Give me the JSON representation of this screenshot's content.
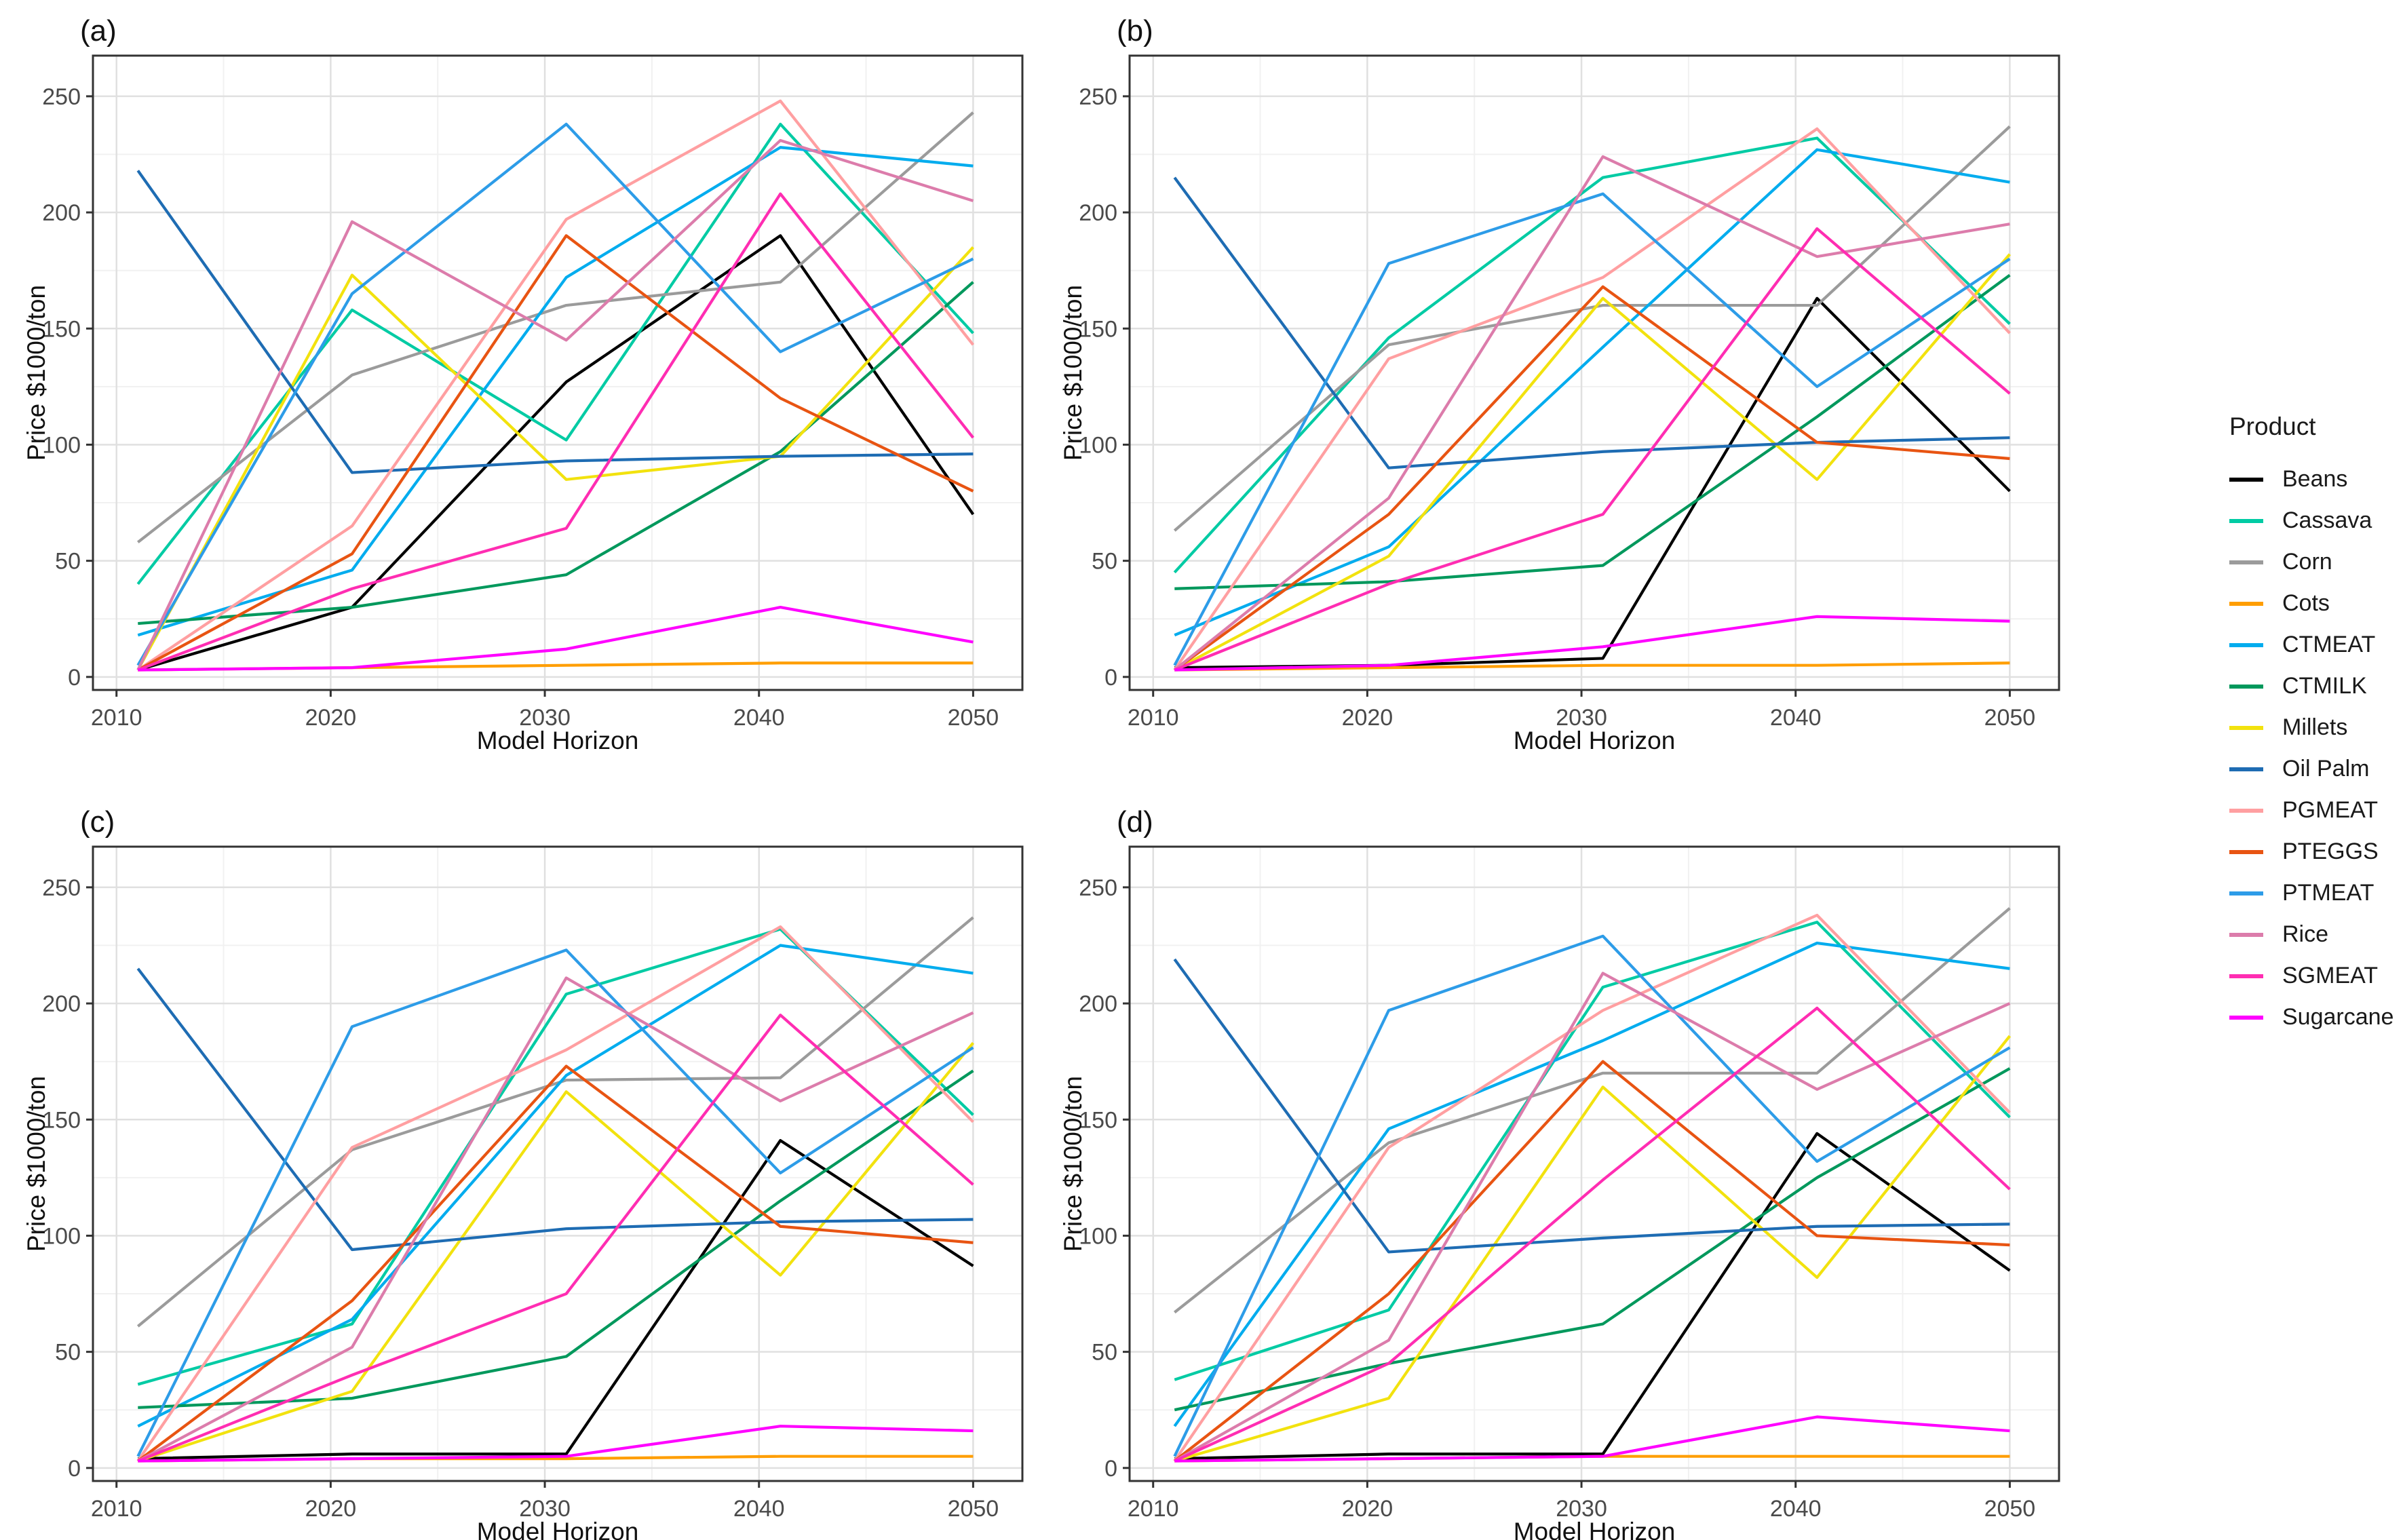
{
  "legend": {
    "title": "Product",
    "items": [
      {
        "label": "Beans",
        "color": "#000000"
      },
      {
        "label": "Cassava",
        "color": "#00CBA4"
      },
      {
        "label": "Corn",
        "color": "#9B9B9B"
      },
      {
        "label": "Cots",
        "color": "#FF9E00"
      },
      {
        "label": "CTMEAT",
        "color": "#00ACEE"
      },
      {
        "label": "CTMILK",
        "color": "#00985C"
      },
      {
        "label": "Millets",
        "color": "#F2E20E"
      },
      {
        "label": "Oil Palm",
        "color": "#1E6CB3"
      },
      {
        "label": "PGMEAT",
        "color": "#FF9FA1"
      },
      {
        "label": "PTEGGS",
        "color": "#E85412"
      },
      {
        "label": "PTMEAT",
        "color": "#2D9CE8"
      },
      {
        "label": "Rice",
        "color": "#DC7CAB"
      },
      {
        "label": "SGMEAT",
        "color": "#FF2DB2"
      },
      {
        "label": "Sugarcane",
        "color": "#FF00FF"
      }
    ]
  },
  "axes": {
    "xlabel": "Model Horizon",
    "ylabel": "Price $1000/ton",
    "xticks": [
      2010,
      2020,
      2030,
      2040,
      2050
    ],
    "yticks": [
      0,
      50,
      100,
      150,
      200,
      250
    ],
    "x_minor": [
      2015,
      2025,
      2035,
      2045
    ],
    "y_minor": [
      25,
      75,
      125,
      175,
      225
    ],
    "xlim": [
      2008.9,
      2052.3
    ],
    "ylim": [
      -5.6,
      267.5
    ],
    "grid": "on",
    "major_grid_color": "#E0E0E0",
    "minor_grid_color": "#F1F1F1",
    "border_color": "#333333",
    "tick_label_color": "#4a4a4a",
    "title_color": "#111111"
  },
  "chart_data": [
    {
      "type": "line",
      "title": "(a)",
      "xlabel": "Model Horizon",
      "ylabel": "Price $1000/ton",
      "x": [
        2011,
        2021,
        2031,
        2041,
        2050
      ],
      "series": [
        {
          "name": "Beans",
          "color": "#000000",
          "values": [
            3,
            30,
            127,
            190,
            70
          ]
        },
        {
          "name": "Cassava",
          "color": "#00CBA4",
          "values": [
            40,
            158,
            102,
            238,
            148
          ]
        },
        {
          "name": "Corn",
          "color": "#9B9B9B",
          "values": [
            58,
            130,
            160,
            170,
            243
          ]
        },
        {
          "name": "Cots",
          "color": "#FF9E00",
          "values": [
            3,
            4,
            5,
            6,
            6
          ]
        },
        {
          "name": "CTMEAT",
          "color": "#00ACEE",
          "values": [
            18,
            46,
            172,
            228,
            220
          ]
        },
        {
          "name": "CTMILK",
          "color": "#00985C",
          "values": [
            23,
            30,
            44,
            97,
            170
          ]
        },
        {
          "name": "Millets",
          "color": "#F2E20E",
          "values": [
            3,
            173,
            85,
            95,
            185
          ]
        },
        {
          "name": "Oil Palm",
          "color": "#1E6CB3",
          "values": [
            218,
            88,
            93,
            95,
            96
          ]
        },
        {
          "name": "PGMEAT",
          "color": "#FF9FA1",
          "values": [
            3,
            65,
            197,
            248,
            143
          ]
        },
        {
          "name": "PTEGGS",
          "color": "#E85412",
          "values": [
            3,
            53,
            190,
            120,
            80
          ]
        },
        {
          "name": "PTMEAT",
          "color": "#2D9CE8",
          "values": [
            5,
            165,
            238,
            140,
            180
          ]
        },
        {
          "name": "Rice",
          "color": "#DC7CAB",
          "values": [
            3,
            196,
            145,
            231,
            205
          ]
        },
        {
          "name": "SGMEAT",
          "color": "#FF2DB2",
          "values": [
            3,
            38,
            64,
            208,
            103
          ]
        },
        {
          "name": "Sugarcane",
          "color": "#FF00FF",
          "values": [
            3,
            4,
            12,
            30,
            15
          ]
        }
      ]
    },
    {
      "type": "line",
      "title": "(b)",
      "xlabel": "Model Horizon",
      "ylabel": "Price $1000/ton",
      "x": [
        2011,
        2021,
        2031,
        2041,
        2050
      ],
      "series": [
        {
          "name": "Beans",
          "color": "#000000",
          "values": [
            4,
            5,
            8,
            163,
            80
          ]
        },
        {
          "name": "Cassava",
          "color": "#00CBA4",
          "values": [
            45,
            146,
            215,
            232,
            152
          ]
        },
        {
          "name": "Corn",
          "color": "#9B9B9B",
          "values": [
            63,
            143,
            160,
            160,
            237
          ]
        },
        {
          "name": "Cots",
          "color": "#FF9E00",
          "values": [
            3,
            4,
            5,
            5,
            6
          ]
        },
        {
          "name": "CTMEAT",
          "color": "#00ACEE",
          "values": [
            18,
            56,
            142,
            227,
            213
          ]
        },
        {
          "name": "CTMILK",
          "color": "#00985C",
          "values": [
            38,
            41,
            48,
            112,
            173
          ]
        },
        {
          "name": "Millets",
          "color": "#F2E20E",
          "values": [
            3,
            52,
            163,
            85,
            182
          ]
        },
        {
          "name": "Oil Palm",
          "color": "#1E6CB3",
          "values": [
            215,
            90,
            97,
            101,
            103
          ]
        },
        {
          "name": "PGMEAT",
          "color": "#FF9FA1",
          "values": [
            3,
            137,
            172,
            236,
            148
          ]
        },
        {
          "name": "PTEGGS",
          "color": "#E85412",
          "values": [
            3,
            70,
            168,
            101,
            94
          ]
        },
        {
          "name": "PTMEAT",
          "color": "#2D9CE8",
          "values": [
            5,
            178,
            208,
            125,
            180
          ]
        },
        {
          "name": "Rice",
          "color": "#DC7CAB",
          "values": [
            3,
            77,
            224,
            181,
            195
          ]
        },
        {
          "name": "SGMEAT",
          "color": "#FF2DB2",
          "values": [
            3,
            40,
            70,
            193,
            122
          ]
        },
        {
          "name": "Sugarcane",
          "color": "#FF00FF",
          "values": [
            3,
            5,
            13,
            26,
            24
          ]
        }
      ]
    },
    {
      "type": "line",
      "title": "(c)",
      "xlabel": "Model Horizon",
      "ylabel": "Price $1000/ton",
      "x": [
        2011,
        2021,
        2031,
        2041,
        2050
      ],
      "series": [
        {
          "name": "Beans",
          "color": "#000000",
          "values": [
            4,
            6,
            6,
            141,
            87
          ]
        },
        {
          "name": "Cassava",
          "color": "#00CBA4",
          "values": [
            36,
            62,
            204,
            232,
            152
          ]
        },
        {
          "name": "Corn",
          "color": "#9B9B9B",
          "values": [
            61,
            137,
            167,
            168,
            237
          ]
        },
        {
          "name": "Cots",
          "color": "#FF9E00",
          "values": [
            3,
            4,
            4,
            5,
            5
          ]
        },
        {
          "name": "CTMEAT",
          "color": "#00ACEE",
          "values": [
            18,
            64,
            169,
            225,
            213
          ]
        },
        {
          "name": "CTMILK",
          "color": "#00985C",
          "values": [
            26,
            30,
            48,
            115,
            171
          ]
        },
        {
          "name": "Millets",
          "color": "#F2E20E",
          "values": [
            3,
            33,
            162,
            83,
            183
          ]
        },
        {
          "name": "Oil Palm",
          "color": "#1E6CB3",
          "values": [
            215,
            94,
            103,
            106,
            107
          ]
        },
        {
          "name": "PGMEAT",
          "color": "#FF9FA1",
          "values": [
            3,
            138,
            180,
            233,
            149
          ]
        },
        {
          "name": "PTEGGS",
          "color": "#E85412",
          "values": [
            3,
            72,
            173,
            104,
            97
          ]
        },
        {
          "name": "PTMEAT",
          "color": "#2D9CE8",
          "values": [
            5,
            190,
            223,
            127,
            181
          ]
        },
        {
          "name": "Rice",
          "color": "#DC7CAB",
          "values": [
            3,
            52,
            211,
            158,
            196
          ]
        },
        {
          "name": "SGMEAT",
          "color": "#FF2DB2",
          "values": [
            3,
            40,
            75,
            195,
            122
          ]
        },
        {
          "name": "Sugarcane",
          "color": "#FF00FF",
          "values": [
            3,
            4,
            5,
            18,
            16
          ]
        }
      ]
    },
    {
      "type": "line",
      "title": "(d)",
      "xlabel": "Model Horizon",
      "ylabel": "Price $1000/ton",
      "x": [
        2011,
        2021,
        2031,
        2041,
        2050
      ],
      "series": [
        {
          "name": "Beans",
          "color": "#000000",
          "values": [
            4,
            6,
            6,
            144,
            85
          ]
        },
        {
          "name": "Cassava",
          "color": "#00CBA4",
          "values": [
            38,
            68,
            207,
            235,
            151
          ]
        },
        {
          "name": "Corn",
          "color": "#9B9B9B",
          "values": [
            67,
            140,
            170,
            170,
            241
          ]
        },
        {
          "name": "Cots",
          "color": "#FF9E00",
          "values": [
            3,
            4,
            5,
            5,
            5
          ]
        },
        {
          "name": "CTMEAT",
          "color": "#00ACEE",
          "values": [
            18,
            146,
            184,
            226,
            215
          ]
        },
        {
          "name": "CTMILK",
          "color": "#00985C",
          "values": [
            25,
            45,
            62,
            125,
            172
          ]
        },
        {
          "name": "Millets",
          "color": "#F2E20E",
          "values": [
            3,
            30,
            164,
            82,
            186
          ]
        },
        {
          "name": "Oil Palm",
          "color": "#1E6CB3",
          "values": [
            219,
            93,
            99,
            104,
            105
          ]
        },
        {
          "name": "PGMEAT",
          "color": "#FF9FA1",
          "values": [
            3,
            138,
            197,
            238,
            153
          ]
        },
        {
          "name": "PTEGGS",
          "color": "#E85412",
          "values": [
            3,
            75,
            175,
            100,
            96
          ]
        },
        {
          "name": "PTMEAT",
          "color": "#2D9CE8",
          "values": [
            5,
            197,
            229,
            132,
            181
          ]
        },
        {
          "name": "Rice",
          "color": "#DC7CAB",
          "values": [
            3,
            55,
            213,
            163,
            200
          ]
        },
        {
          "name": "SGMEAT",
          "color": "#FF2DB2",
          "values": [
            3,
            45,
            124,
            198,
            120
          ]
        },
        {
          "name": "Sugarcane",
          "color": "#FF00FF",
          "values": [
            3,
            4,
            5,
            22,
            16
          ]
        }
      ]
    }
  ]
}
